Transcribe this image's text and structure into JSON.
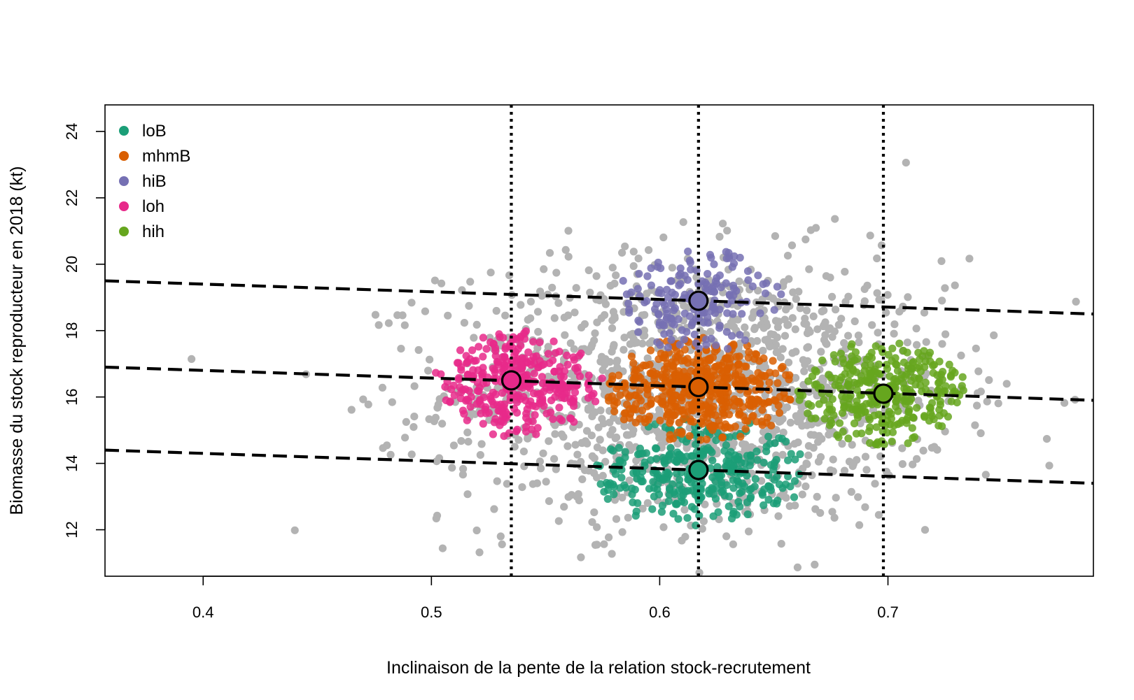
{
  "chart_data": {
    "type": "scatter",
    "title": "",
    "xlabel": "Inclinaison de la pente de la relation stock-recrutement",
    "ylabel": "Biomasse du stock reproducteur en 2018 (kt)",
    "xlim": [
      0.357,
      0.79
    ],
    "ylim": [
      10.6,
      24.8
    ],
    "xticks": [
      0.4,
      0.5,
      0.6,
      0.7
    ],
    "xtick_labels": [
      "0.4",
      "0.5",
      "0.6",
      "0.7"
    ],
    "yticks": [
      12,
      14,
      16,
      18,
      20,
      22,
      24
    ],
    "ytick_labels": [
      "12",
      "14",
      "16",
      "18",
      "20",
      "22",
      "24"
    ],
    "grid": false,
    "legend_position": "top-left",
    "background_points": {
      "color": "#b3b3b3",
      "approx_count": 1400,
      "x_mean": 0.617,
      "x_sd": 0.055,
      "y_mean": 16.2,
      "y_sd": 2.0
    },
    "series": [
      {
        "name": "loB",
        "color": "#1b9e77",
        "center": [
          0.617,
          13.8
        ],
        "x_range": [
          0.57,
          0.665
        ],
        "y_range": [
          12.1,
          15.4
        ],
        "approx_count": 330
      },
      {
        "name": "mhmB",
        "color": "#d95f02",
        "center": [
          0.617,
          16.3
        ],
        "x_range": [
          0.575,
          0.66
        ],
        "y_range": [
          14.6,
          17.8
        ],
        "approx_count": 480
      },
      {
        "name": "hiB",
        "color": "#7570b3",
        "center": [
          0.617,
          18.9
        ],
        "x_range": [
          0.578,
          0.655
        ],
        "y_range": [
          17.3,
          20.5
        ],
        "approx_count": 170
      },
      {
        "name": "loh",
        "color": "#e7298a",
        "center": [
          0.535,
          16.5
        ],
        "x_range": [
          0.5,
          0.575
        ],
        "y_range": [
          14.8,
          18.0
        ],
        "approx_count": 330
      },
      {
        "name": "hih",
        "color": "#66a61e",
        "center": [
          0.698,
          16.1
        ],
        "x_range": [
          0.66,
          0.735
        ],
        "y_range": [
          14.5,
          17.7
        ],
        "approx_count": 330
      }
    ],
    "highlighted_points": [
      {
        "series": "loh",
        "x": 0.535,
        "y": 16.5
      },
      {
        "series": "mhmB",
        "x": 0.617,
        "y": 16.3
      },
      {
        "series": "loB",
        "x": 0.617,
        "y": 13.8
      },
      {
        "series": "hiB",
        "x": 0.617,
        "y": 18.9
      },
      {
        "series": "hih",
        "x": 0.698,
        "y": 16.1
      }
    ],
    "vertical_lines": [
      {
        "x": 0.535,
        "style": "dotted"
      },
      {
        "x": 0.617,
        "style": "dotted"
      },
      {
        "x": 0.698,
        "style": "dotted"
      }
    ],
    "dashed_lines": [
      {
        "x": [
          0.357,
          0.79
        ],
        "y": [
          19.5,
          18.5
        ]
      },
      {
        "x": [
          0.357,
          0.79
        ],
        "y": [
          16.9,
          15.9
        ]
      },
      {
        "x": [
          0.357,
          0.79
        ],
        "y": [
          14.4,
          13.4
        ]
      }
    ]
  }
}
